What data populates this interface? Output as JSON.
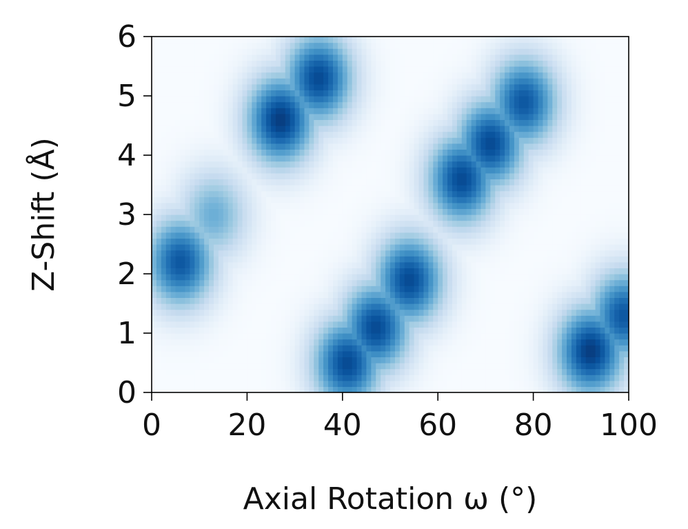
{
  "chart_data": {
    "type": "heatmap",
    "xlabel": "Axial Rotation ω (°)",
    "ylabel": "Z-Shift (Å)",
    "xlim": [
      0,
      100
    ],
    "ylim": [
      0,
      6
    ],
    "xticks": [
      0,
      20,
      40,
      60,
      80,
      100
    ],
    "yticks": [
      0,
      1,
      2,
      3,
      4,
      5,
      6
    ],
    "xtick_labels": [
      "0",
      "20",
      "40",
      "60",
      "80",
      "100"
    ],
    "ytick_labels": [
      "0",
      "1",
      "2",
      "3",
      "4",
      "5",
      "6"
    ],
    "colormap": "Blues",
    "grid": false,
    "legend": "none",
    "peaks": [
      {
        "x": 6,
        "y": 2.2,
        "intensity": 0.85
      },
      {
        "x": 13,
        "y": 3.0,
        "intensity": 0.5
      },
      {
        "x": 27,
        "y": 4.6,
        "intensity": 0.95
      },
      {
        "x": 35,
        "y": 5.3,
        "intensity": 0.9
      },
      {
        "x": 41,
        "y": 0.5,
        "intensity": 0.9
      },
      {
        "x": 47,
        "y": 1.1,
        "intensity": 0.9
      },
      {
        "x": 54,
        "y": 1.9,
        "intensity": 0.9
      },
      {
        "x": 65,
        "y": 3.6,
        "intensity": 0.9
      },
      {
        "x": 71,
        "y": 4.2,
        "intensity": 0.9
      },
      {
        "x": 78,
        "y": 4.9,
        "intensity": 0.85
      },
      {
        "x": 92,
        "y": 0.7,
        "intensity": 0.95
      },
      {
        "x": 99,
        "y": 1.3,
        "intensity": 0.85
      }
    ]
  }
}
